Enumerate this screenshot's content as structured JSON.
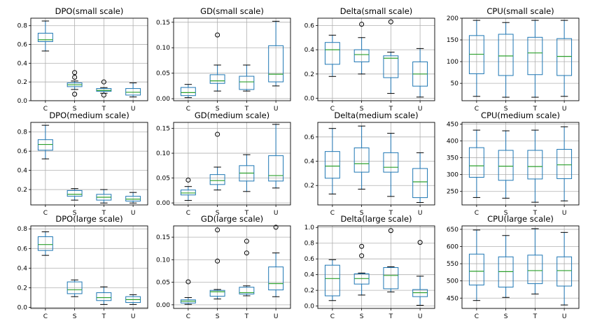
{
  "colors": {
    "box": "#1f77b4",
    "median": "#2ca02c",
    "grid": "#b0b0b0",
    "flier": "#000000"
  },
  "chart_data": [
    {
      "type": "box",
      "title": "DPO(small scale)",
      "categories": [
        "C",
        "S",
        "T",
        "U"
      ],
      "ylim": [
        0,
        0.88
      ],
      "yticks": [
        0.0,
        0.2,
        0.4,
        0.6,
        0.8
      ],
      "grid": true,
      "tick_labels": [
        "0.0",
        "0.2",
        "0.4",
        "0.6",
        "0.8"
      ],
      "boxes": [
        {
          "whislo": 0.53,
          "q1": 0.63,
          "med": 0.65,
          "q3": 0.72,
          "whishi": 0.85,
          "fliers": []
        },
        {
          "whislo": 0.12,
          "q1": 0.15,
          "med": 0.17,
          "q3": 0.19,
          "whishi": 0.21,
          "fliers": [
            0.07,
            0.25,
            0.3
          ]
        },
        {
          "whislo": 0.08,
          "q1": 0.1,
          "med": 0.11,
          "q3": 0.13,
          "whishi": 0.14,
          "fliers": [
            0.06,
            0.2
          ]
        },
        {
          "whislo": 0.04,
          "q1": 0.06,
          "med": 0.09,
          "q3": 0.13,
          "whishi": 0.19,
          "fliers": []
        }
      ]
    },
    {
      "type": "box",
      "title": "GD(small scale)",
      "categories": [
        "C",
        "S",
        "T",
        "U"
      ],
      "ylim": [
        -0.004,
        0.158
      ],
      "yticks": [
        0.0,
        0.05,
        0.1,
        0.15
      ],
      "grid": true,
      "tick_labels": [
        "0.00",
        "0.05",
        "0.10",
        "0.15"
      ],
      "boxes": [
        {
          "whislo": 0.002,
          "q1": 0.006,
          "med": 0.012,
          "q3": 0.022,
          "whishi": 0.028,
          "fliers": []
        },
        {
          "whislo": 0.015,
          "q1": 0.03,
          "med": 0.035,
          "q3": 0.047,
          "whishi": 0.066,
          "fliers": [
            0.125
          ]
        },
        {
          "whislo": 0.015,
          "q1": 0.018,
          "med": 0.033,
          "q3": 0.044,
          "whishi": 0.066,
          "fliers": []
        },
        {
          "whislo": 0.025,
          "q1": 0.033,
          "med": 0.048,
          "q3": 0.104,
          "whishi": 0.152,
          "fliers": []
        }
      ]
    },
    {
      "type": "box",
      "title": "Delta(small scale)",
      "categories": [
        "C",
        "S",
        "T",
        "U"
      ],
      "ylim": [
        -0.02,
        0.66
      ],
      "yticks": [
        0.0,
        0.2,
        0.4,
        0.6
      ],
      "grid": true,
      "tick_labels": [
        "0.0",
        "0.2",
        "0.4",
        "0.6"
      ],
      "boxes": [
        {
          "whislo": 0.18,
          "q1": 0.28,
          "med": 0.4,
          "q3": 0.46,
          "whishi": 0.52,
          "fliers": []
        },
        {
          "whislo": 0.2,
          "q1": 0.3,
          "med": 0.36,
          "q3": 0.4,
          "whishi": 0.5,
          "fliers": [
            0.61
          ]
        },
        {
          "whislo": 0.04,
          "q1": 0.17,
          "med": 0.33,
          "q3": 0.35,
          "whishi": 0.38,
          "fliers": [
            0.63
          ]
        },
        {
          "whislo": 0.01,
          "q1": 0.1,
          "med": 0.2,
          "q3": 0.3,
          "whishi": 0.41,
          "fliers": []
        }
      ]
    },
    {
      "type": "box",
      "title": "CPU(small scale)",
      "categories": [
        "C",
        "S",
        "T",
        "U"
      ],
      "ylim": [
        10,
        200
      ],
      "yticks": [
        50,
        100,
        150,
        200
      ],
      "grid": true,
      "tick_labels": [
        "50",
        "100",
        "150",
        "200"
      ],
      "boxes": [
        {
          "whislo": 20,
          "q1": 72,
          "med": 117,
          "q3": 160,
          "whishi": 195,
          "fliers": []
        },
        {
          "whislo": 18,
          "q1": 68,
          "med": 113,
          "q3": 163,
          "whishi": 190,
          "fliers": []
        },
        {
          "whislo": 18,
          "q1": 70,
          "med": 120,
          "q3": 156,
          "whishi": 195,
          "fliers": []
        },
        {
          "whislo": 20,
          "q1": 68,
          "med": 112,
          "q3": 153,
          "whishi": 195,
          "fliers": []
        }
      ]
    },
    {
      "type": "box",
      "title": "DPO(medium scale)",
      "categories": [
        "C",
        "S",
        "T",
        "U"
      ],
      "ylim": [
        0.04,
        0.9
      ],
      "yticks": [
        0.2,
        0.4,
        0.6,
        0.8
      ],
      "grid": true,
      "tick_labels": [
        "0.2",
        "0.4",
        "0.6",
        "0.8"
      ],
      "boxes": [
        {
          "whislo": 0.52,
          "q1": 0.61,
          "med": 0.67,
          "q3": 0.72,
          "whishi": 0.87,
          "fliers": []
        },
        {
          "whislo": 0.09,
          "q1": 0.13,
          "med": 0.15,
          "q3": 0.19,
          "whishi": 0.21,
          "fliers": []
        },
        {
          "whislo": 0.06,
          "q1": 0.09,
          "med": 0.12,
          "q3": 0.15,
          "whishi": 0.2,
          "fliers": []
        },
        {
          "whislo": 0.06,
          "q1": 0.08,
          "med": 0.1,
          "q3": 0.13,
          "whishi": 0.17,
          "fliers": []
        }
      ]
    },
    {
      "type": "box",
      "title": "GD(medium scale)",
      "categories": [
        "C",
        "S",
        "T",
        "U"
      ],
      "ylim": [
        -0.004,
        0.162
      ],
      "yticks": [
        0.0,
        0.05,
        0.1,
        0.15
      ],
      "grid": true,
      "tick_labels": [
        "0.00",
        "0.05",
        "0.10",
        "0.15"
      ],
      "boxes": [
        {
          "whislo": 0.005,
          "q1": 0.016,
          "med": 0.02,
          "q3": 0.026,
          "whishi": 0.033,
          "fliers": [
            0.046
          ]
        },
        {
          "whislo": 0.026,
          "q1": 0.037,
          "med": 0.045,
          "q3": 0.057,
          "whishi": 0.072,
          "fliers": [
            0.138
          ]
        },
        {
          "whislo": 0.023,
          "q1": 0.044,
          "med": 0.06,
          "q3": 0.075,
          "whishi": 0.097,
          "fliers": []
        },
        {
          "whislo": 0.03,
          "q1": 0.044,
          "med": 0.055,
          "q3": 0.095,
          "whishi": 0.158,
          "fliers": []
        }
      ]
    },
    {
      "type": "box",
      "title": "Delta(medium scale)",
      "categories": [
        "C",
        "S",
        "T",
        "U"
      ],
      "ylim": [
        0.04,
        0.72
      ],
      "yticks": [
        0.2,
        0.4,
        0.6
      ],
      "grid": true,
      "tick_labels": [
        "0.2",
        "0.4",
        "0.6"
      ],
      "boxes": [
        {
          "whislo": 0.13,
          "q1": 0.26,
          "med": 0.36,
          "q3": 0.48,
          "whishi": 0.67,
          "fliers": []
        },
        {
          "whislo": 0.17,
          "q1": 0.31,
          "med": 0.38,
          "q3": 0.51,
          "whishi": 0.69,
          "fliers": []
        },
        {
          "whislo": 0.11,
          "q1": 0.31,
          "med": 0.35,
          "q3": 0.47,
          "whishi": 0.63,
          "fliers": []
        },
        {
          "whislo": 0.06,
          "q1": 0.1,
          "med": 0.23,
          "q3": 0.34,
          "whishi": 0.47,
          "fliers": []
        }
      ]
    },
    {
      "type": "box",
      "title": "CPU(medium scale)",
      "categories": [
        "C",
        "S",
        "T",
        "U"
      ],
      "ylim": [
        210,
        455
      ],
      "yticks": [
        250,
        300,
        350,
        400,
        450
      ],
      "grid": true,
      "tick_labels": [
        "250",
        "300",
        "350",
        "400",
        "450"
      ],
      "boxes": [
        {
          "whislo": 232,
          "q1": 292,
          "med": 326,
          "q3": 380,
          "whishi": 432,
          "fliers": []
        },
        {
          "whislo": 230,
          "q1": 283,
          "med": 325,
          "q3": 372,
          "whishi": 430,
          "fliers": []
        },
        {
          "whislo": 218,
          "q1": 287,
          "med": 324,
          "q3": 372,
          "whishi": 432,
          "fliers": []
        },
        {
          "whislo": 222,
          "q1": 288,
          "med": 329,
          "q3": 375,
          "whishi": 442,
          "fliers": []
        }
      ]
    },
    {
      "type": "box",
      "title": "DPO(large scale)",
      "categories": [
        "C",
        "S",
        "T",
        "U"
      ],
      "ylim": [
        -0.01,
        0.83
      ],
      "yticks": [
        0.0,
        0.2,
        0.4,
        0.6,
        0.8
      ],
      "grid": true,
      "tick_labels": [
        "0.0",
        "0.2",
        "0.4",
        "0.6",
        "0.8"
      ],
      "boxes": [
        {
          "whislo": 0.53,
          "q1": 0.58,
          "med": 0.64,
          "q3": 0.72,
          "whishi": 0.77,
          "fliers": []
        },
        {
          "whislo": 0.11,
          "q1": 0.14,
          "med": 0.18,
          "q3": 0.26,
          "whishi": 0.28,
          "fliers": []
        },
        {
          "whislo": 0.03,
          "q1": 0.07,
          "med": 0.1,
          "q3": 0.15,
          "whishi": 0.21,
          "fliers": []
        },
        {
          "whislo": 0.03,
          "q1": 0.05,
          "med": 0.08,
          "q3": 0.11,
          "whishi": 0.13,
          "fliers": []
        }
      ]
    },
    {
      "type": "box",
      "title": "GD(large scale)",
      "categories": [
        "C",
        "S",
        "T",
        "U"
      ],
      "ylim": [
        -0.008,
        0.175
      ],
      "yticks": [
        0.0,
        0.05,
        0.1,
        0.15
      ],
      "grid": true,
      "tick_labels": [
        "0.00",
        "0.05",
        "0.10",
        "0.15"
      ],
      "boxes": [
        {
          "whislo": 0.001,
          "q1": 0.004,
          "med": 0.008,
          "q3": 0.011,
          "whishi": 0.016,
          "fliers": [
            0.051
          ]
        },
        {
          "whislo": 0.013,
          "q1": 0.019,
          "med": 0.029,
          "q3": 0.032,
          "whishi": 0.034,
          "fliers": [
            0.097,
            0.166
          ]
        },
        {
          "whislo": 0.02,
          "q1": 0.024,
          "med": 0.027,
          "q3": 0.039,
          "whishi": 0.042,
          "fliers": [
            0.115,
            0.141
          ]
        },
        {
          "whislo": 0.018,
          "q1": 0.033,
          "med": 0.047,
          "q3": 0.084,
          "whishi": 0.115,
          "fliers": [
            0.172
          ]
        }
      ]
    },
    {
      "type": "box",
      "title": "Delta(large scale)",
      "categories": [
        "C",
        "S",
        "T",
        "U"
      ],
      "ylim": [
        -0.03,
        1.02
      ],
      "yticks": [
        0.0,
        0.2,
        0.4,
        0.6,
        0.8,
        1.0
      ],
      "grid": true,
      "tick_labels": [
        "0.0",
        "0.2",
        "0.4",
        "0.6",
        "0.8",
        "1.0"
      ],
      "boxes": [
        {
          "whislo": 0.07,
          "q1": 0.13,
          "med": 0.35,
          "q3": 0.52,
          "whishi": 0.59,
          "fliers": []
        },
        {
          "whislo": 0.14,
          "q1": 0.28,
          "med": 0.35,
          "q3": 0.41,
          "whishi": 0.42,
          "fliers": [
            0.64,
            0.76
          ]
        },
        {
          "whislo": 0.18,
          "q1": 0.22,
          "med": 0.39,
          "q3": 0.49,
          "whishi": 0.5,
          "fliers": [
            0.96
          ]
        },
        {
          "whislo": 0.01,
          "q1": 0.12,
          "med": 0.17,
          "q3": 0.21,
          "whishi": 0.38,
          "fliers": [
            0.81
          ]
        }
      ]
    },
    {
      "type": "box",
      "title": "CPU(large scale)",
      "categories": [
        "C",
        "S",
        "T",
        "U"
      ],
      "ylim": [
        420,
        660
      ],
      "yticks": [
        450,
        500,
        550,
        600,
        650
      ],
      "grid": true,
      "tick_labels": [
        "450",
        "500",
        "550",
        "600",
        "650"
      ],
      "boxes": [
        {
          "whislo": 443,
          "q1": 488,
          "med": 528,
          "q3": 578,
          "whishi": 648,
          "fliers": []
        },
        {
          "whislo": 452,
          "q1": 482,
          "med": 527,
          "q3": 570,
          "whishi": 632,
          "fliers": []
        },
        {
          "whislo": 462,
          "q1": 492,
          "med": 530,
          "q3": 575,
          "whishi": 652,
          "fliers": []
        },
        {
          "whislo": 430,
          "q1": 485,
          "med": 530,
          "q3": 570,
          "whishi": 641,
          "fliers": []
        }
      ]
    }
  ]
}
